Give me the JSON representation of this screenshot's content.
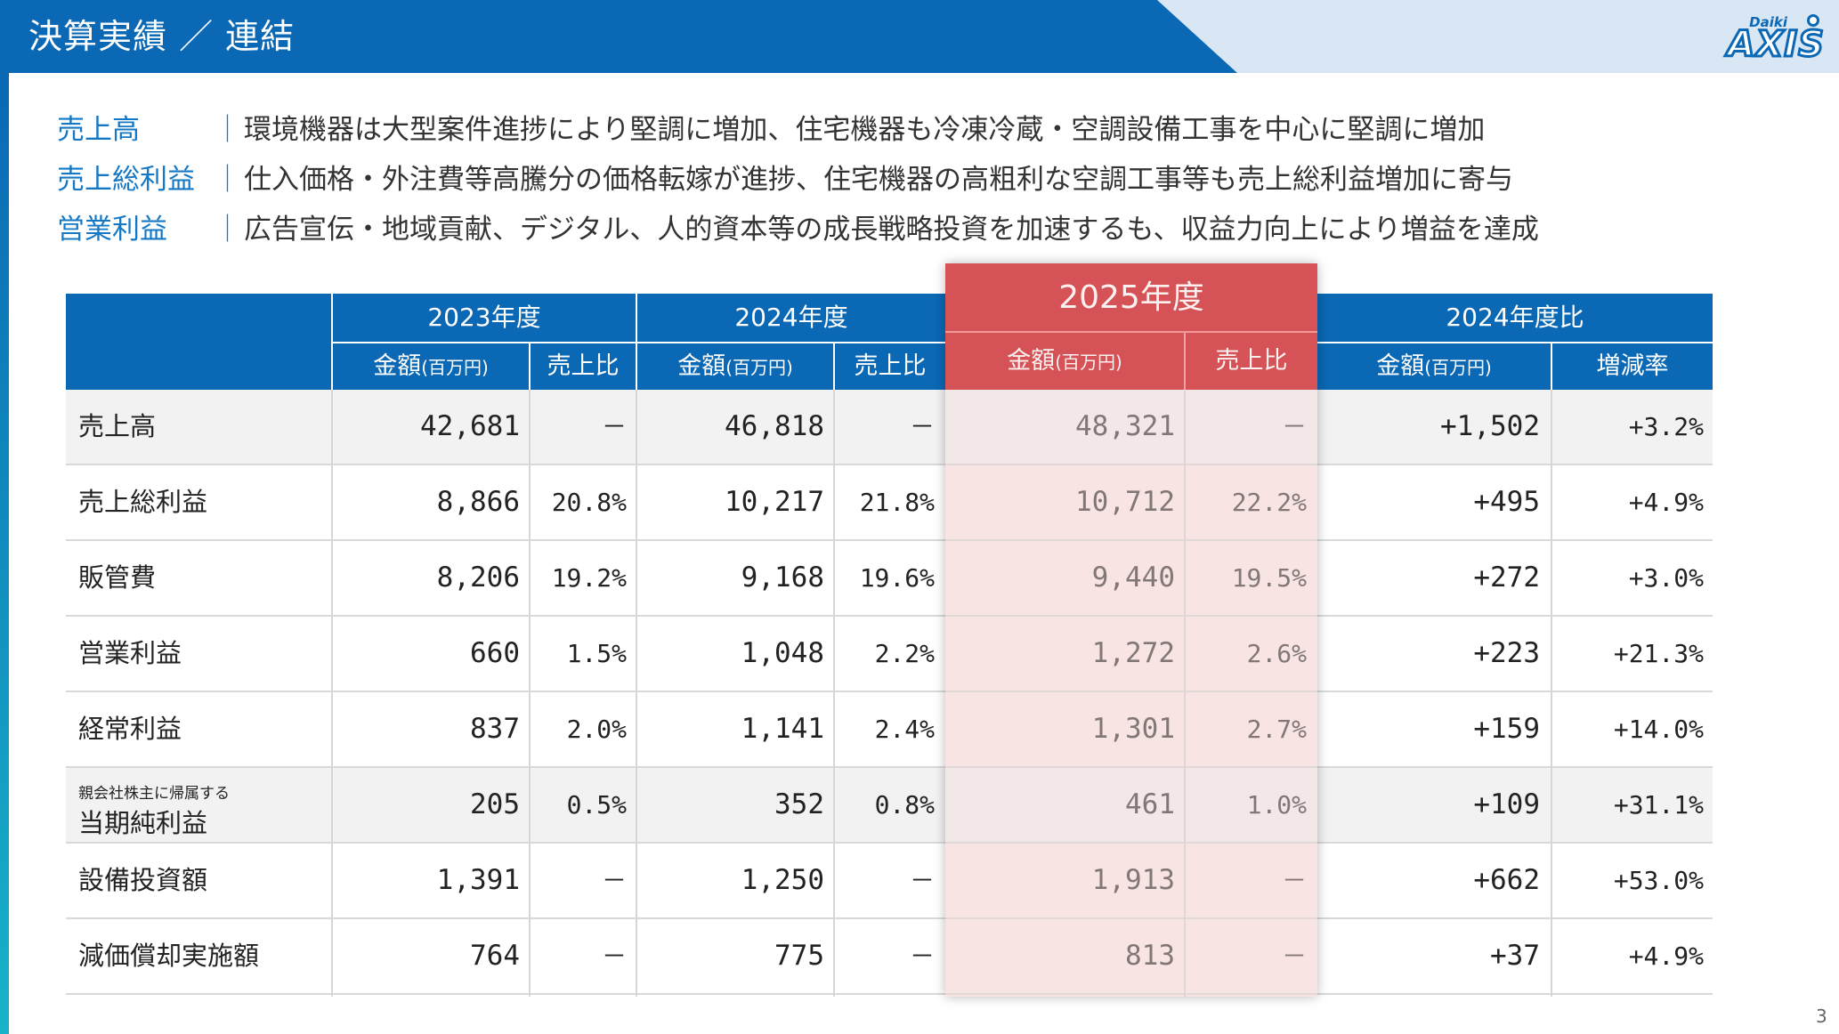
{
  "header": {
    "title": "決算実績 ／ 連結",
    "logo_small": "Daiki",
    "logo_main": "AXIS"
  },
  "summary": [
    {
      "label": "売上高",
      "sep": "｜",
      "text": "環境機器は大型案件進捗により堅調に増加、住宅機器も冷凍冷蔵・空調設備工事を中心に堅調に増加"
    },
    {
      "label": "売上総利益",
      "sep": "｜",
      "text": "仕入価格・外注費等高騰分の価格転嫁が進捗、住宅機器の高粗利な空調工事等も売上総利益増加に寄与"
    },
    {
      "label": "営業利益",
      "sep": "｜",
      "text": "広告宣伝・地域貢献、デジタル、人的資本等の成長戦略投資を加速するも、収益力向上により増益を達成"
    }
  ],
  "table": {
    "groups": [
      "2023年度",
      "2024年度",
      "2025年度",
      "2024年度比"
    ],
    "sub": {
      "amount": "金額",
      "unit": "(百万円)",
      "ratio": "売上比",
      "change": "増減率"
    },
    "rows": [
      {
        "label": "売上高",
        "sublabel": "",
        "y2023": "42,681",
        "r2023": "－",
        "y2024": "46,818",
        "r2024": "－",
        "y2025": "48,321",
        "r2025": "－",
        "diff": "+1,502",
        "rate": "+3.2%"
      },
      {
        "label": "売上総利益",
        "sublabel": "",
        "y2023": "8,866",
        "r2023": "20.8%",
        "y2024": "10,217",
        "r2024": "21.8%",
        "y2025": "10,712",
        "r2025": "22.2%",
        "diff": "+495",
        "rate": "+4.9%"
      },
      {
        "label": "販管費",
        "sublabel": "",
        "y2023": "8,206",
        "r2023": "19.2%",
        "y2024": "9,168",
        "r2024": "19.6%",
        "y2025": "9,440",
        "r2025": "19.5%",
        "diff": "+272",
        "rate": "+3.0%"
      },
      {
        "label": "営業利益",
        "sublabel": "",
        "y2023": "660",
        "r2023": "1.5%",
        "y2024": "1,048",
        "r2024": "2.2%",
        "y2025": "1,272",
        "r2025": "2.6%",
        "diff": "+223",
        "rate": "+21.3%"
      },
      {
        "label": "経常利益",
        "sublabel": "",
        "y2023": "837",
        "r2023": "2.0%",
        "y2024": "1,141",
        "r2024": "2.4%",
        "y2025": "1,301",
        "r2025": "2.7%",
        "diff": "+159",
        "rate": "+14.0%"
      },
      {
        "label": "当期純利益",
        "sublabel": "親会社株主に帰属する",
        "y2023": "205",
        "r2023": "0.5%",
        "y2024": "352",
        "r2024": "0.8%",
        "y2025": "461",
        "r2025": "1.0%",
        "diff": "+109",
        "rate": "+31.1%"
      },
      {
        "label": "設備投資額",
        "sublabel": "",
        "y2023": "1,391",
        "r2023": "－",
        "y2024": "1,250",
        "r2024": "－",
        "y2025": "1,913",
        "r2025": "－",
        "diff": "+662",
        "rate": "+53.0%"
      },
      {
        "label": "減価償却実施額",
        "sublabel": "",
        "y2023": "764",
        "r2023": "－",
        "y2024": "775",
        "r2024": "－",
        "y2025": "813",
        "r2025": "－",
        "diff": "+37",
        "rate": "+4.9%"
      }
    ]
  },
  "page_number": "3",
  "colors": {
    "brand_blue": "#0a68b4",
    "highlight_red": "#c40b12",
    "label_blue": "#1478c5"
  }
}
